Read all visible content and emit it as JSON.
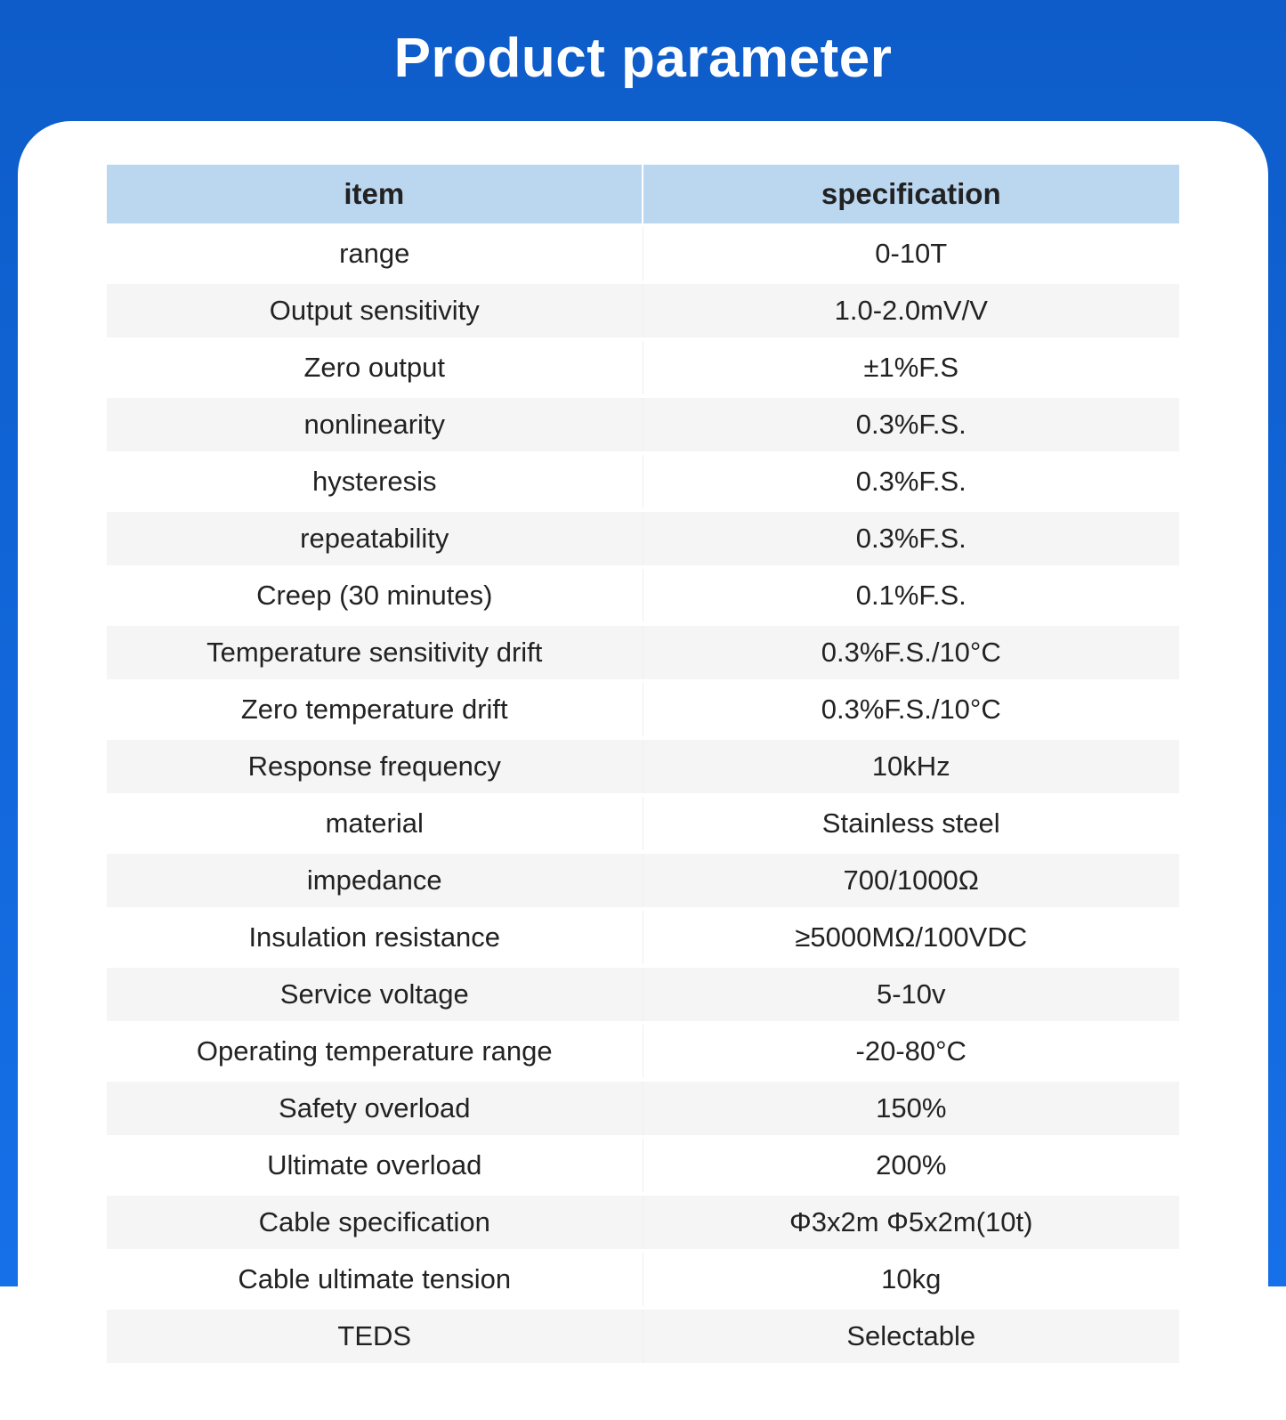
{
  "header": {
    "title": "Product parameter"
  },
  "table": {
    "type": "table",
    "columns": [
      "item",
      "specification"
    ],
    "header_bg": "#bbd7f0",
    "header_color": "#222222",
    "header_fontsize": 33,
    "row_even_bg": "#f5f5f5",
    "row_odd_bg": "#ffffff",
    "cell_color": "#222222",
    "cell_fontsize": 31,
    "rows": [
      [
        "range",
        "0-10T"
      ],
      [
        "Output sensitivity",
        "1.0-2.0mV/V"
      ],
      [
        "Zero output",
        "±1%F.S"
      ],
      [
        "nonlinearity",
        "0.3%F.S."
      ],
      [
        "hysteresis",
        "0.3%F.S."
      ],
      [
        "repeatability",
        "0.3%F.S."
      ],
      [
        "Creep (30 minutes)",
        "0.1%F.S."
      ],
      [
        "Temperature sensitivity drift",
        "0.3%F.S./10°C"
      ],
      [
        "Zero temperature drift",
        "0.3%F.S./10°C"
      ],
      [
        "Response frequency",
        "10kHz"
      ],
      [
        "material",
        "Stainless steel"
      ],
      [
        "impedance",
        "700/1000Ω"
      ],
      [
        "Insulation resistance",
        "≥5000MΩ/100VDC"
      ],
      [
        "Service voltage",
        "5-10v"
      ],
      [
        "Operating temperature range",
        "-20-80°C"
      ],
      [
        "Safety overload",
        "150%"
      ],
      [
        "Ultimate overload",
        "200%"
      ],
      [
        "Cable specification",
        "Φ3x2m Φ5x2m(10t)"
      ],
      [
        "Cable ultimate tension",
        "10kg"
      ],
      [
        "TEDS",
        "Selectable"
      ]
    ]
  },
  "colors": {
    "gradient_start": "#0d5cc9",
    "gradient_end": "#1670e8",
    "panel_bg": "#ffffff",
    "title_color": "#ffffff"
  },
  "layout": {
    "title_fontsize": 62,
    "panel_radius": 60
  }
}
